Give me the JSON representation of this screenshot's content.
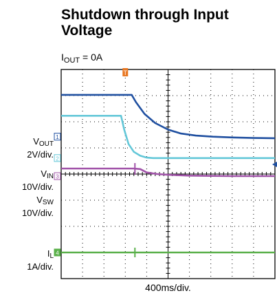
{
  "chart_data": {
    "type": "line",
    "title": "Shutdown through Input Voltage",
    "subtitle_prefix": "I",
    "subtitle_sub": "OUT",
    "subtitle_suffix": " = 0A",
    "xlabel": "400ms/div.",
    "x_divisions": 10,
    "y_divisions": 8,
    "xlim": [
      0,
      10
    ],
    "ylim": [
      0,
      8
    ],
    "trigger_marker": "T",
    "grid": true,
    "series": [
      {
        "name": "VOUT",
        "label_main": "V",
        "label_sub": "OUT",
        "scale": "2V/div.",
        "channel": "1",
        "color": "#1f4fa0",
        "ground_div": 5.43,
        "x": [
          0,
          3.3,
          3.5,
          3.9,
          4.4,
          5.0,
          5.6,
          6.3,
          7.1,
          8.0,
          9.0,
          10
        ],
        "y": [
          7.03,
          7.03,
          6.75,
          6.3,
          5.95,
          5.7,
          5.55,
          5.47,
          5.43,
          5.4,
          5.38,
          5.37
        ]
      },
      {
        "name": "VIN",
        "label_main": "V",
        "label_sub": "IN",
        "scale": "10V/div.",
        "channel": "2",
        "color": "#63c7d8",
        "ground_div": 4.61,
        "x": [
          0,
          2.8,
          2.95,
          3.15,
          3.4,
          3.7,
          4.0,
          4.3,
          10
        ],
        "y": [
          6.23,
          6.23,
          5.7,
          5.15,
          4.85,
          4.7,
          4.63,
          4.61,
          4.61
        ]
      },
      {
        "name": "VSW",
        "label_main": "V",
        "label_sub": "SW",
        "scale": "10V/div.",
        "channel": "3",
        "color": "#a052a8",
        "ground_div": 3.92,
        "x": [
          0,
          3.4,
          3.7,
          4.0,
          4.5,
          5.0,
          6.0,
          7.0,
          8.0,
          9.0,
          10
        ],
        "y": [
          4.21,
          4.21,
          4.19,
          4.06,
          4.0,
          3.97,
          3.94,
          3.93,
          3.92,
          3.92,
          3.92
        ]
      },
      {
        "name": "IL",
        "label_main": "I",
        "label_sub": "L",
        "scale": "1A/div.",
        "channel": "4",
        "color": "#5ab04a",
        "ground_div": 1.0,
        "x": [
          0,
          10
        ],
        "y": [
          1.0,
          1.0
        ]
      }
    ]
  },
  "colors": {
    "grid": "#000000",
    "background": "#ffffff",
    "trigger": "#e87722",
    "marker_edge": "#1f4fa0"
  }
}
